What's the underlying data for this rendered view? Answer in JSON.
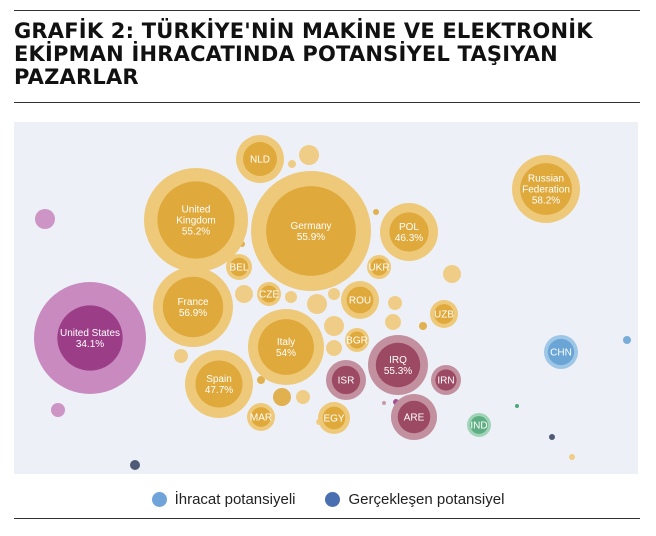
{
  "title": "GRAFİK 2: TÜRKİYE'NİN MAKİNE VE ELEKTRONİK EKİPMAN İHRACATINDA POTANSİYEL TAŞIYAN PAZARLAR",
  "colors": {
    "plot_background": "#edf1f7",
    "europe_outer": "#efc97a",
    "europe_inner": "#dfa93c",
    "americas_outer": "#c98ac0",
    "americas_inner": "#9c3d88",
    "middle_east_outer": "#c3909f",
    "middle_east_inner": "#9c4a64",
    "asia_outer": "#9ec6e6",
    "asia_inner": "#6aa5d6",
    "south_asia_outer": "#9fd5b6",
    "south_asia_inner": "#5fae83",
    "dark_dot": "#3d4a66",
    "green_dot": "#3aa06c",
    "legend_ihracat": "#6fa3d9",
    "legend_gerceklesen": "#4a6fb0"
  },
  "legend": {
    "items": [
      {
        "label": "İhracat potansiyeli",
        "color": "#6fa3d9"
      },
      {
        "label": "Gerçekleşen potansiyel",
        "color": "#4a6fb0"
      }
    ]
  },
  "chart_data": {
    "type": "bubble",
    "bubbles": [
      {
        "label": "United Kingdom",
        "value": "55.2%",
        "group": "europe",
        "size": 5.2,
        "realized": 0.55
      },
      {
        "label": "Germany",
        "value": "55.9%",
        "group": "europe",
        "size": 7.2,
        "realized": 0.56
      },
      {
        "label": "NLD",
        "group": "europe",
        "size": 1.2,
        "realized": 0.5
      },
      {
        "label": "Russian Federation",
        "value": "58.2%",
        "group": "europe",
        "size": 2.1,
        "realized": 0.58
      },
      {
        "label": "POL",
        "value": "46.3%",
        "group": "europe",
        "size": 1.8,
        "realized": 0.46
      },
      {
        "label": "UKR",
        "group": "europe",
        "size": 0.35,
        "realized": 0.5
      },
      {
        "label": "BEL",
        "group": "europe",
        "size": 0.4,
        "realized": 0.5
      },
      {
        "label": "CZE",
        "group": "europe",
        "size": 0.35,
        "realized": 0.5
      },
      {
        "label": "France",
        "value": "56.9%",
        "group": "europe",
        "size": 3.1,
        "realized": 0.57
      },
      {
        "label": "ROU",
        "group": "europe",
        "size": 0.8,
        "realized": 0.5
      },
      {
        "label": "UZB",
        "group": "europe",
        "size": 0.45,
        "realized": 0.5
      },
      {
        "label": "BGR",
        "group": "europe",
        "size": 0.3,
        "realized": 0.5
      },
      {
        "label": "Italy",
        "value": "54%",
        "group": "europe",
        "size": 2.9,
        "realized": 0.54
      },
      {
        "label": "Spain",
        "value": "47.7%",
        "group": "europe",
        "size": 2.3,
        "realized": 0.48
      },
      {
        "label": "MAR",
        "group": "europe",
        "size": 0.45,
        "realized": 0.5
      },
      {
        "label": "EGY",
        "group": "europe",
        "size": 0.55,
        "realized": 0.5
      },
      {
        "label": "United States",
        "value": "34.1%",
        "group": "americas",
        "size": 5.6,
        "realized": 0.34
      },
      {
        "label": "IRQ",
        "value": "55.3%",
        "group": "middle_east",
        "size": 2.0,
        "realized": 0.55
      },
      {
        "label": "ISR",
        "group": "middle_east",
        "size": 0.8,
        "realized": 0.5
      },
      {
        "label": "IRN",
        "group": "middle_east",
        "size": 0.45,
        "realized": 0.5
      },
      {
        "label": "ARE",
        "group": "middle_east",
        "size": 1.0,
        "realized": 0.5
      },
      {
        "label": "CHN",
        "group": "asia",
        "size": 0.55,
        "realized": 0.6
      },
      {
        "label": "IND",
        "group": "south_asia",
        "size": 0.3,
        "realized": 0.55
      }
    ],
    "ylabel": "",
    "xlabel": ""
  }
}
